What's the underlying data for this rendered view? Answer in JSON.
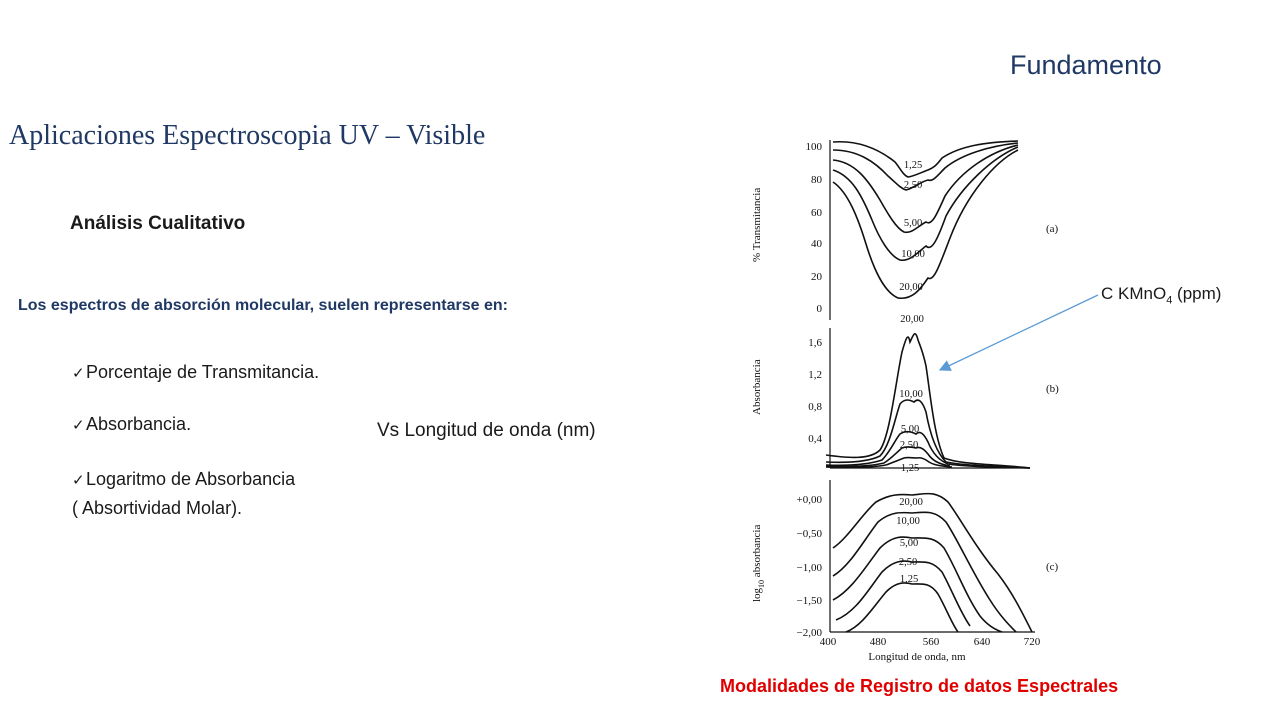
{
  "slide": {
    "topic": "Fundamento",
    "title": "Aplicaciones Espectroscopia UV – Visible",
    "subtitle": "Análisis Cualitativo",
    "intro": "Los espectros de absorción molecular, suelen representarse en:",
    "bullets": [
      {
        "text": "Porcentaje de Transmitancia."
      },
      {
        "text": "Absorbancia."
      },
      {
        "text": "Logaritmo de Absorbancia",
        "line2": "( Absortividad Molar)."
      }
    ],
    "vs_label": "Vs Longitud de onda (nm)",
    "concentration_label": {
      "main": "C KMnO",
      "sub": "4",
      "unit": " (ppm)"
    },
    "caption": "Modalidades de Registro de datos Espectrales",
    "colors": {
      "title": "#1f3864",
      "caption": "#e00000",
      "arrow": "#5b9bd5"
    }
  },
  "figure": {
    "x_label": "Longitud de onda, nm",
    "x_ticks": [
      "400",
      "480",
      "560",
      "640",
      "720"
    ],
    "panel_a": {
      "y_label": "% Transmitancia",
      "tag": "(a)",
      "y_ticks": [
        "100",
        "80",
        "60",
        "40",
        "20",
        "0"
      ],
      "curve_labels": [
        "1,25",
        "2,50",
        "5,00",
        "10,00",
        "20,00"
      ]
    },
    "panel_b": {
      "y_label": "Absorbancia",
      "tag": "(b)",
      "y_ticks": [
        "1,6",
        "1,2",
        "0,8",
        "0,4"
      ],
      "curve_labels": [
        "20,00",
        "10,00",
        "5,00",
        "2,50",
        "1,25"
      ]
    },
    "panel_c": {
      "y_label": "log",
      "y_label_sub": "10",
      "y_label_end": " absorbancia",
      "tag": "(c)",
      "y_ticks": [
        "+0,00",
        "−0,50",
        "−1,00",
        "−1,50",
        "−2,00"
      ],
      "curve_labels": [
        "20,00",
        "10,00",
        "5,00",
        "2,50",
        "1,25"
      ]
    }
  }
}
